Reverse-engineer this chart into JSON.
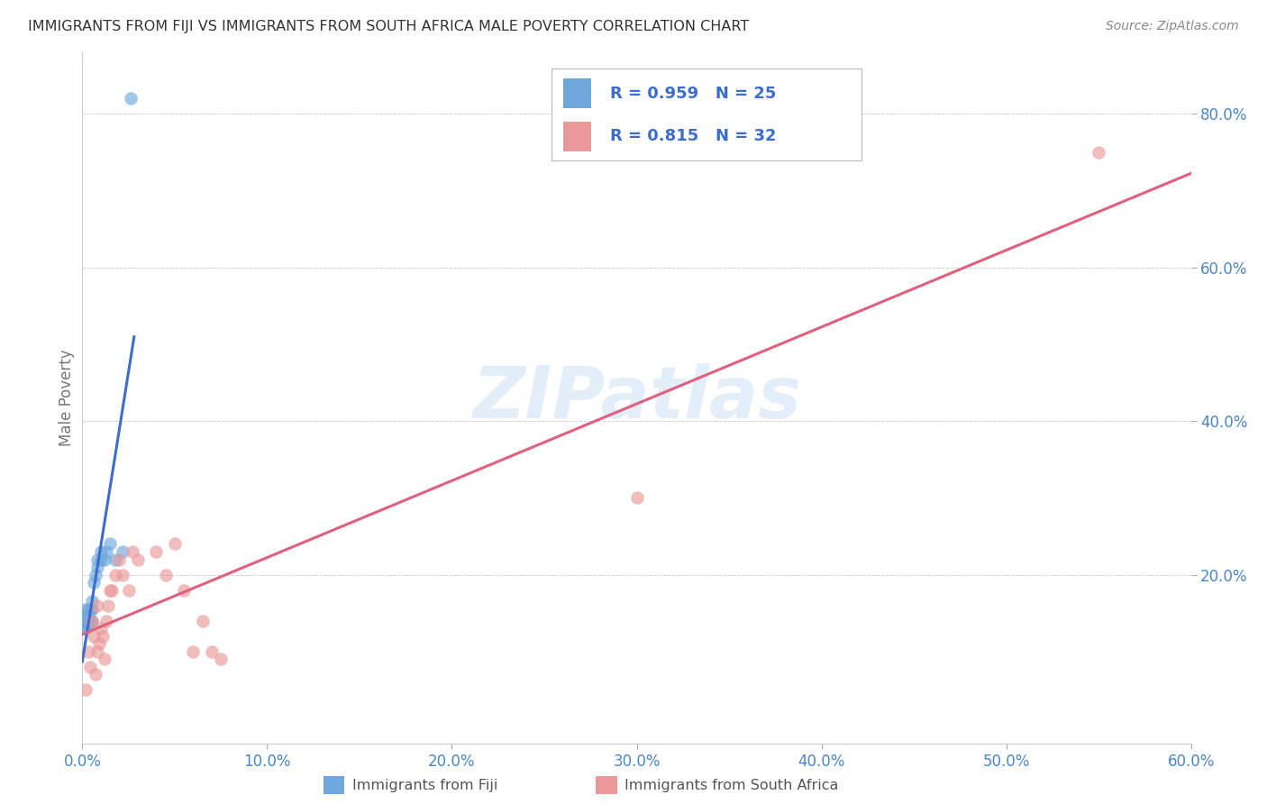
{
  "title": "IMMIGRANTS FROM FIJI VS IMMIGRANTS FROM SOUTH AFRICA MALE POVERTY CORRELATION CHART",
  "source": "Source: ZipAtlas.com",
  "ylabel": "Male Poverty",
  "xlim": [
    0.0,
    0.6
  ],
  "ylim": [
    -0.02,
    0.88
  ],
  "xtick_labels": [
    "0.0%",
    "10.0%",
    "20.0%",
    "30.0%",
    "40.0%",
    "50.0%",
    "60.0%"
  ],
  "xtick_vals": [
    0.0,
    0.1,
    0.2,
    0.3,
    0.4,
    0.5,
    0.6
  ],
  "ytick_labels": [
    "20.0%",
    "40.0%",
    "60.0%",
    "80.0%"
  ],
  "ytick_vals": [
    0.2,
    0.4,
    0.6,
    0.8
  ],
  "fiji_color": "#6fa8dc",
  "sa_color": "#ea9999",
  "fiji_line_color": "#3d6dcc",
  "sa_line_color": "#e06080",
  "fiji_R": 0.959,
  "fiji_N": 25,
  "sa_R": 0.815,
  "sa_N": 32,
  "legend_text_color": "#3d6dcc",
  "background_color": "#ffffff",
  "fiji_scatter_x": [
    0.001,
    0.001,
    0.002,
    0.002,
    0.002,
    0.003,
    0.003,
    0.003,
    0.004,
    0.004,
    0.005,
    0.005,
    0.005,
    0.006,
    0.007,
    0.008,
    0.008,
    0.01,
    0.01,
    0.012,
    0.013,
    0.015,
    0.018,
    0.022,
    0.026
  ],
  "fiji_scatter_y": [
    0.13,
    0.145,
    0.13,
    0.14,
    0.155,
    0.135,
    0.145,
    0.155,
    0.14,
    0.155,
    0.14,
    0.155,
    0.165,
    0.19,
    0.2,
    0.21,
    0.22,
    0.22,
    0.23,
    0.22,
    0.23,
    0.24,
    0.22,
    0.23,
    0.82
  ],
  "sa_scatter_x": [
    0.002,
    0.003,
    0.004,
    0.005,
    0.006,
    0.007,
    0.008,
    0.008,
    0.009,
    0.01,
    0.011,
    0.012,
    0.013,
    0.014,
    0.015,
    0.016,
    0.018,
    0.02,
    0.022,
    0.025,
    0.027,
    0.03,
    0.04,
    0.045,
    0.05,
    0.055,
    0.06,
    0.065,
    0.07,
    0.075,
    0.3,
    0.55
  ],
  "sa_scatter_y": [
    0.05,
    0.1,
    0.08,
    0.14,
    0.12,
    0.07,
    0.1,
    0.16,
    0.11,
    0.13,
    0.12,
    0.09,
    0.14,
    0.16,
    0.18,
    0.18,
    0.2,
    0.22,
    0.2,
    0.18,
    0.23,
    0.22,
    0.23,
    0.2,
    0.24,
    0.18,
    0.1,
    0.14,
    0.1,
    0.09,
    0.3,
    0.75
  ],
  "fiji_line_x": [
    0.0,
    0.028
  ],
  "sa_line_x": [
    0.0,
    0.6
  ]
}
